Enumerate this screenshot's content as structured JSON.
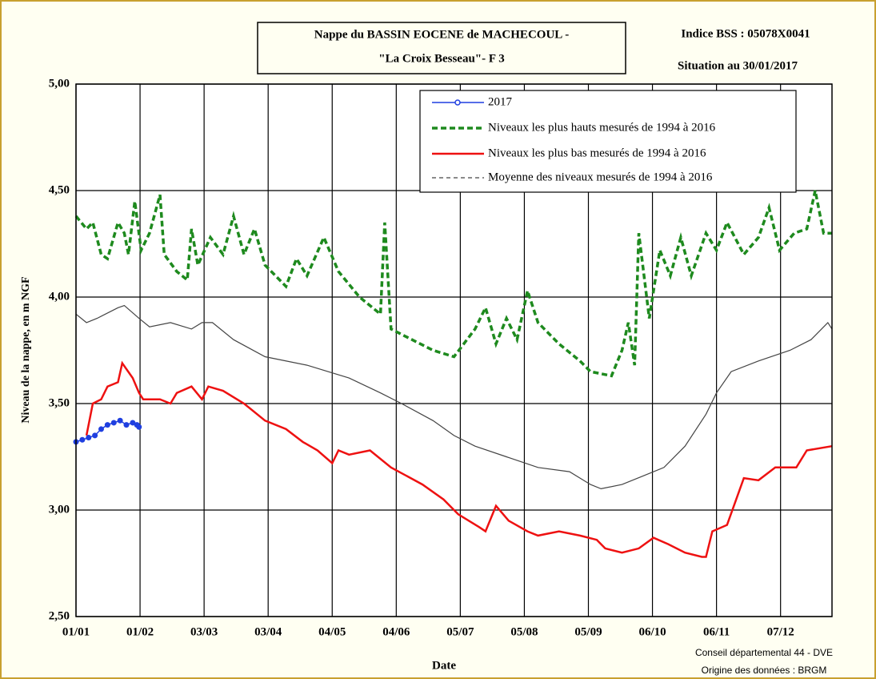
{
  "chart_data": {
    "type": "line",
    "title": "Nappe du BASSIN EOCENE de MACHECOUL -",
    "subtitle": "\"La Croix Besseau\"- F 3",
    "annotations": [
      "Indice BSS : 05078X0041",
      "Situation au 30/01/2017",
      "Conseil départemental 44 - DVE",
      "Origine des données : BRGM"
    ],
    "xlabel": "Date",
    "ylabel": "Niveau de la nappe, en m NGF",
    "xlim": [
      0,
      360
    ],
    "xticks": [
      {
        "value": 0,
        "label": "01/01"
      },
      {
        "value": 30.5,
        "label": "01/02"
      },
      {
        "value": 61,
        "label": "03/03"
      },
      {
        "value": 91.5,
        "label": "03/04"
      },
      {
        "value": 122,
        "label": "04/05"
      },
      {
        "value": 152.5,
        "label": "04/06"
      },
      {
        "value": 183,
        "label": "05/07"
      },
      {
        "value": 213.5,
        "label": "05/08"
      },
      {
        "value": 244,
        "label": "05/09"
      },
      {
        "value": 274.5,
        "label": "06/10"
      },
      {
        "value": 305,
        "label": "06/11"
      },
      {
        "value": 335.5,
        "label": "07/12"
      }
    ],
    "ylim": [
      2.5,
      5
    ],
    "yticks": [
      {
        "value": 2.5,
        "label": "2,50"
      },
      {
        "value": 3,
        "label": "3,00"
      },
      {
        "value": 3.5,
        "label": "3,50"
      },
      {
        "value": 4,
        "label": "4,00"
      },
      {
        "value": 4.5,
        "label": "4,50"
      },
      {
        "value": 5,
        "label": "5,00"
      }
    ],
    "grid": true,
    "legend": "top-right",
    "series": [
      {
        "name": "2017",
        "color": "#1f3fe0",
        "x": [
          0,
          3,
          6,
          9,
          12,
          15,
          18,
          21,
          24,
          27,
          29,
          30
        ],
        "values": [
          3.32,
          3.33,
          3.34,
          3.35,
          3.38,
          3.4,
          3.41,
          3.42,
          3.4,
          3.41,
          3.4,
          3.39
        ]
      },
      {
        "name": "Niveaux les plus hauts mesurés de 1994 à 2016",
        "color": "#1e8a1e",
        "x": [
          0,
          5,
          8,
          12,
          15,
          20,
          23,
          25,
          28,
          31,
          35,
          40,
          42,
          48,
          53,
          55,
          58,
          64,
          70,
          75,
          80,
          85,
          90,
          100,
          105,
          110,
          118,
          125,
          135,
          145,
          147,
          150,
          160,
          170,
          180,
          190,
          195,
          200,
          205,
          210,
          215,
          220,
          230,
          240,
          245,
          255,
          260,
          263,
          266,
          268,
          273,
          278,
          283,
          288,
          293,
          300,
          305,
          310,
          318,
          325,
          330,
          335,
          342,
          348,
          352,
          356,
          360
        ],
        "values": [
          4.38,
          4.32,
          4.35,
          4.2,
          4.18,
          4.35,
          4.3,
          4.2,
          4.45,
          4.22,
          4.3,
          4.48,
          4.2,
          4.12,
          4.08,
          4.32,
          4.15,
          4.28,
          4.2,
          4.38,
          4.2,
          4.32,
          4.15,
          4.05,
          4.18,
          4.1,
          4.28,
          4.12,
          4,
          3.92,
          4.35,
          3.85,
          3.8,
          3.75,
          3.72,
          3.85,
          3.95,
          3.78,
          3.9,
          3.8,
          4.03,
          3.88,
          3.78,
          3.7,
          3.65,
          3.63,
          3.75,
          3.88,
          3.68,
          4.3,
          3.9,
          4.22,
          4.1,
          4.28,
          4.1,
          4.3,
          4.22,
          4.35,
          4.2,
          4.28,
          4.42,
          4.22,
          4.3,
          4.32,
          4.5,
          4.3,
          4.3
        ]
      },
      {
        "name": "Niveaux les plus bas mesurés de 1994 à 2016",
        "color": "#ee1111",
        "x": [
          5,
          8,
          12,
          15,
          20,
          22,
          27,
          30,
          32,
          40,
          45,
          48,
          55,
          60,
          63,
          70,
          80,
          90,
          100,
          108,
          115,
          122,
          125,
          130,
          140,
          150,
          165,
          175,
          182,
          192,
          195,
          200,
          206,
          215,
          220,
          230,
          240,
          248,
          252,
          260,
          268,
          275,
          282,
          290,
          298,
          300,
          303,
          310,
          318,
          325,
          333,
          343,
          348,
          360
        ],
        "values": [
          3.35,
          3.5,
          3.52,
          3.58,
          3.6,
          3.69,
          3.62,
          3.55,
          3.52,
          3.52,
          3.5,
          3.55,
          3.58,
          3.52,
          3.58,
          3.56,
          3.5,
          3.42,
          3.38,
          3.32,
          3.28,
          3.22,
          3.28,
          3.26,
          3.28,
          3.2,
          3.12,
          3.05,
          2.98,
          2.92,
          2.9,
          3.02,
          2.95,
          2.9,
          2.88,
          2.9,
          2.88,
          2.86,
          2.82,
          2.8,
          2.82,
          2.87,
          2.84,
          2.8,
          2.78,
          2.78,
          2.9,
          2.93,
          3.15,
          3.14,
          3.2,
          3.2,
          3.28,
          3.3
        ]
      },
      {
        "name": "Moyenne des niveaux mesurés de 1994 à 2016",
        "color": "#444444",
        "x": [
          0,
          5,
          10,
          20,
          23,
          30,
          35,
          45,
          55,
          60,
          65,
          75,
          90,
          110,
          120,
          130,
          145,
          155,
          170,
          180,
          190,
          205,
          220,
          235,
          245,
          250,
          260,
          270,
          280,
          290,
          300,
          305,
          312,
          325,
          340,
          350,
          358,
          360
        ],
        "values": [
          3.92,
          3.88,
          3.9,
          3.95,
          3.96,
          3.9,
          3.86,
          3.88,
          3.85,
          3.88,
          3.88,
          3.8,
          3.72,
          3.68,
          3.65,
          3.62,
          3.55,
          3.5,
          3.42,
          3.35,
          3.3,
          3.25,
          3.2,
          3.18,
          3.12,
          3.1,
          3.12,
          3.16,
          3.2,
          3.3,
          3.45,
          3.55,
          3.65,
          3.7,
          3.75,
          3.8,
          3.88,
          3.85
        ]
      }
    ]
  }
}
